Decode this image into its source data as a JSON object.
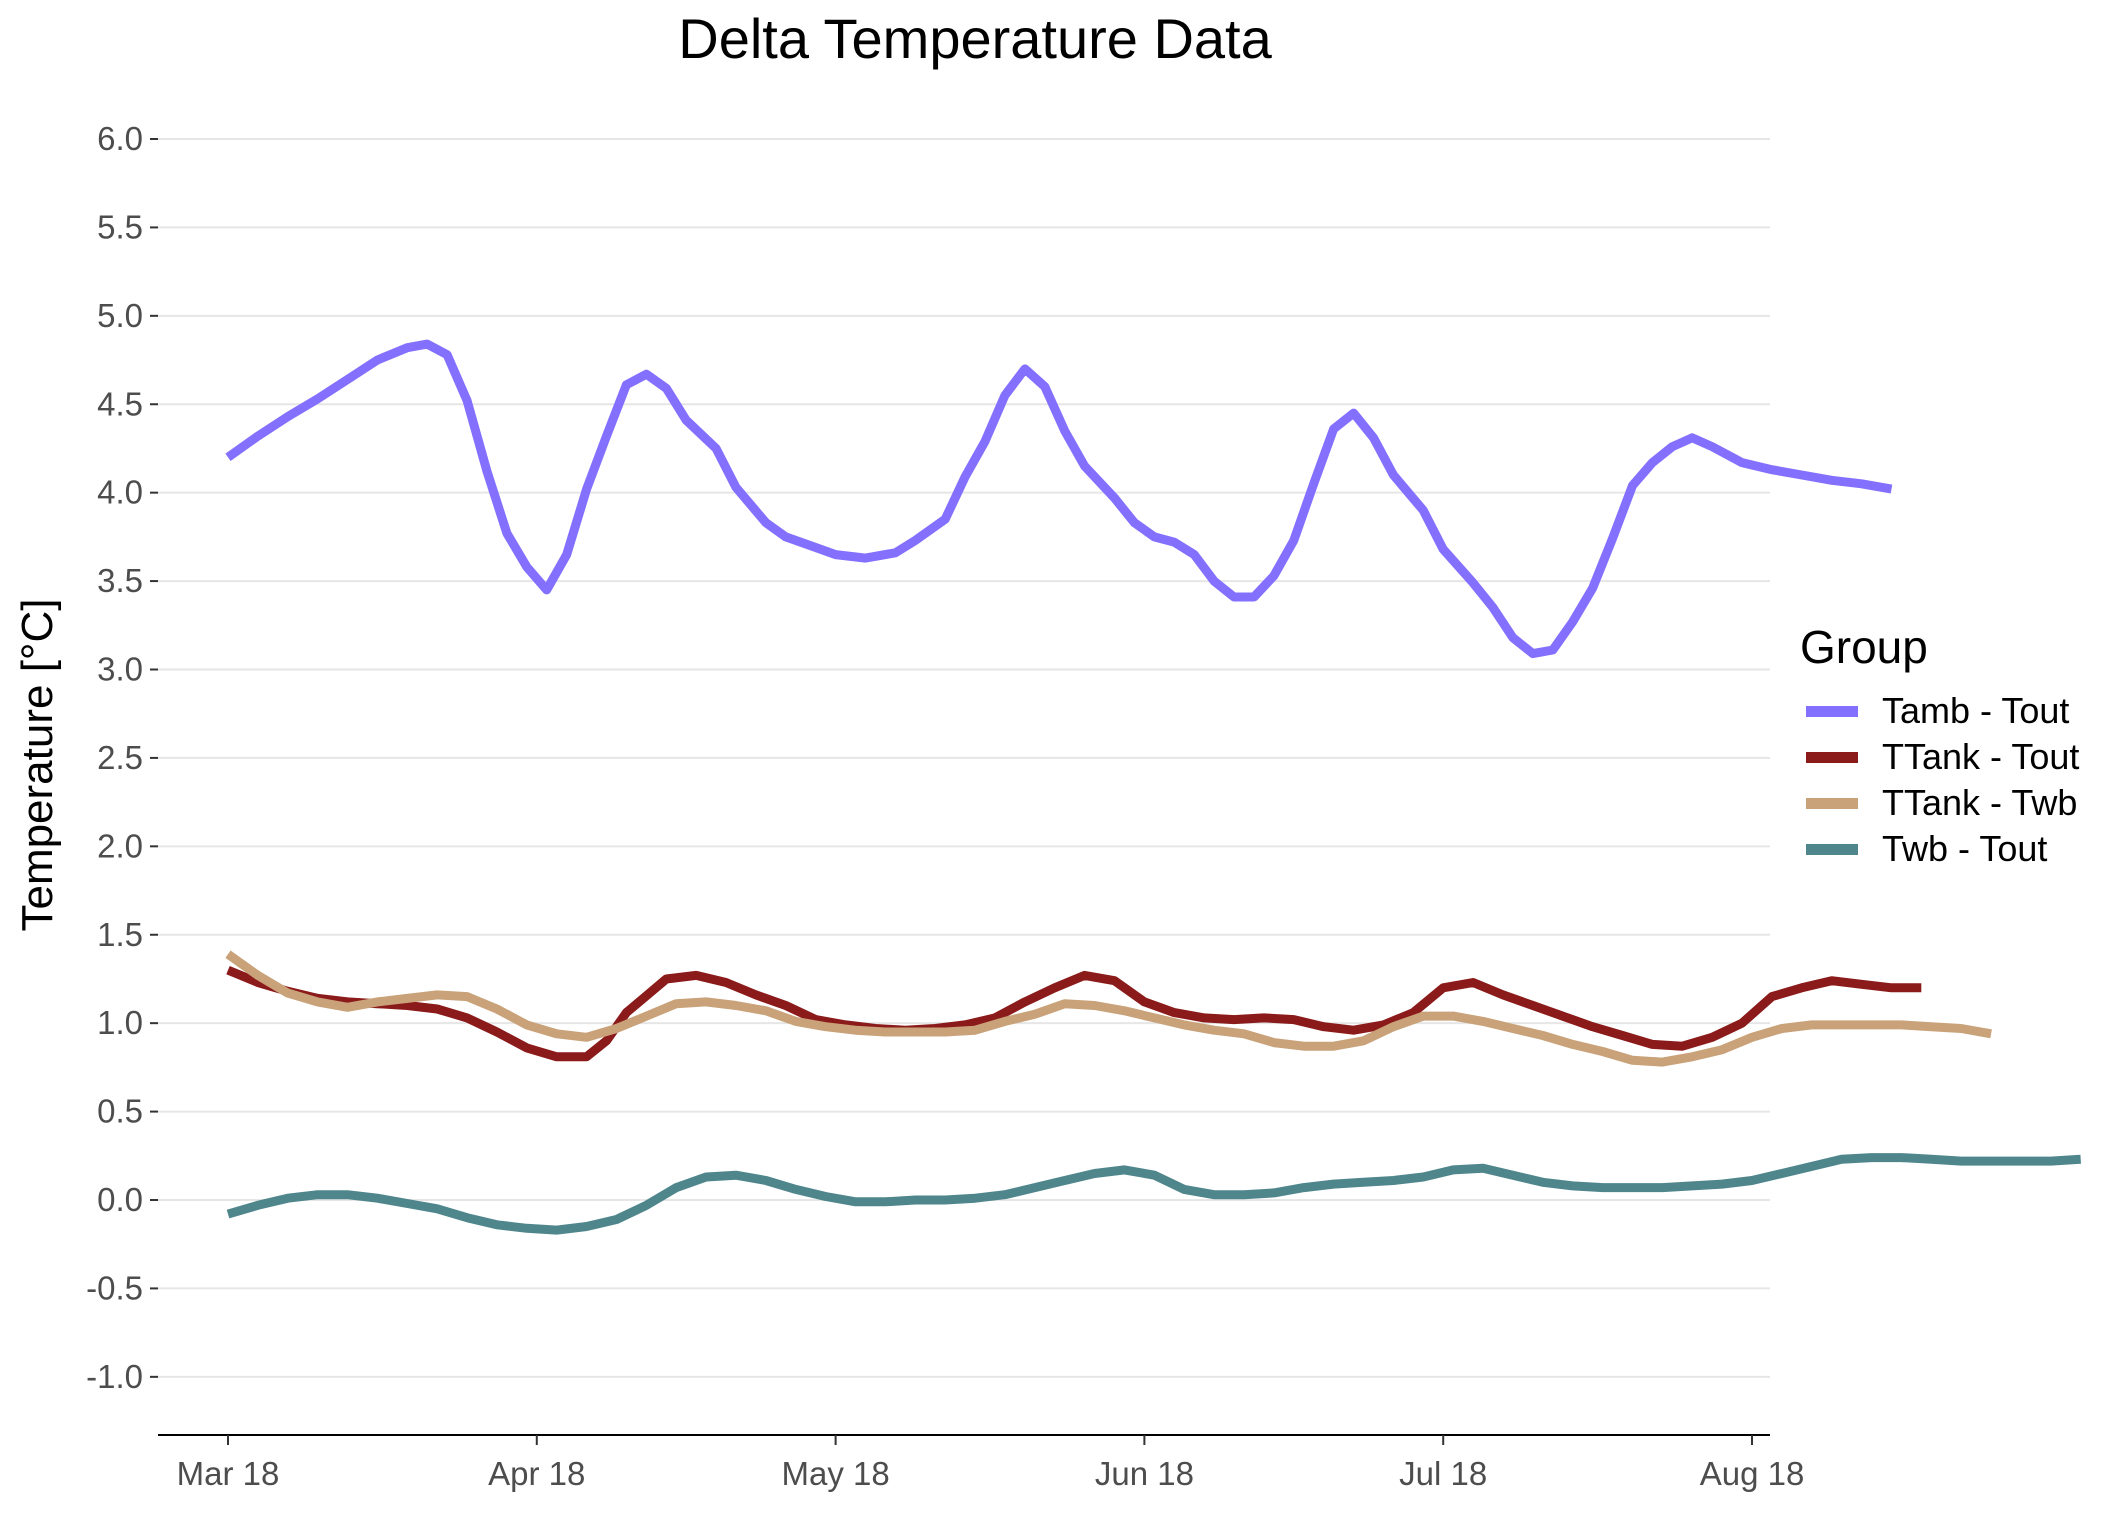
{
  "chart_data": {
    "type": "line",
    "title": "Delta Temperature Data",
    "xlabel": "",
    "ylabel": "Temperature [°C]",
    "ylim": [
      -1.3,
      6.2
    ],
    "yticks": [
      6.0,
      5.5,
      5.0,
      4.5,
      4.0,
      3.5,
      3.0,
      2.5,
      2.0,
      1.5,
      1.0,
      0.5,
      0.0,
      -0.5,
      -1.0
    ],
    "ytick_labels": [
      "6.0",
      "5.5",
      "5.0",
      "4.5",
      "4.0",
      "3.5",
      "3.0",
      "2.5",
      "2.0",
      "1.5",
      "1.0",
      "0.5",
      "0.0",
      "-0.5",
      "-1.0"
    ],
    "xticks": [
      "2018-03-01",
      "2018-04-01",
      "2018-05-01",
      "2018-06-01",
      "2018-07-01",
      "2018-08-01"
    ],
    "xtick_labels": [
      "Mar 18",
      "Apr 18",
      "May 18",
      "Jun 18",
      "Jul 18",
      "Aug 18"
    ],
    "grid": "horizontal",
    "legend": {
      "title": "Group",
      "placement": "right"
    },
    "series": [
      {
        "name": "Tamb - Tout",
        "color": "#8470FF",
        "points": [
          [
            "2018-03-01",
            4.2
          ],
          [
            "2018-03-04",
            4.32
          ],
          [
            "2018-03-07",
            4.43
          ],
          [
            "2018-03-10",
            4.53
          ],
          [
            "2018-03-13",
            4.64
          ],
          [
            "2018-03-16",
            4.75
          ],
          [
            "2018-03-19",
            4.82
          ],
          [
            "2018-03-21",
            4.84
          ],
          [
            "2018-03-23",
            4.78
          ],
          [
            "2018-03-25",
            4.52
          ],
          [
            "2018-03-27",
            4.12
          ],
          [
            "2018-03-29",
            3.77
          ],
          [
            "2018-03-31",
            3.58
          ],
          [
            "2018-04-02",
            3.45
          ],
          [
            "2018-04-04",
            3.65
          ],
          [
            "2018-04-06",
            4.02
          ],
          [
            "2018-04-08",
            4.32
          ],
          [
            "2018-04-10",
            4.61
          ],
          [
            "2018-04-12",
            4.67
          ],
          [
            "2018-04-14",
            4.59
          ],
          [
            "2018-04-16",
            4.41
          ],
          [
            "2018-04-19",
            4.25
          ],
          [
            "2018-04-21",
            4.03
          ],
          [
            "2018-04-24",
            3.83
          ],
          [
            "2018-04-26",
            3.75
          ],
          [
            "2018-04-29",
            3.69
          ],
          [
            "2018-05-01",
            3.65
          ],
          [
            "2018-05-04",
            3.63
          ],
          [
            "2018-05-07",
            3.66
          ],
          [
            "2018-05-09",
            3.73
          ],
          [
            "2018-05-12",
            3.85
          ],
          [
            "2018-05-14",
            4.09
          ],
          [
            "2018-05-16",
            4.29
          ],
          [
            "2018-05-18",
            4.55
          ],
          [
            "2018-05-20",
            4.7
          ],
          [
            "2018-05-22",
            4.6
          ],
          [
            "2018-05-24",
            4.35
          ],
          [
            "2018-05-26",
            4.15
          ],
          [
            "2018-05-29",
            3.97
          ],
          [
            "2018-05-31",
            3.83
          ],
          [
            "2018-06-02",
            3.75
          ],
          [
            "2018-06-04",
            3.72
          ],
          [
            "2018-06-06",
            3.65
          ],
          [
            "2018-06-08",
            3.5
          ],
          [
            "2018-06-10",
            3.41
          ],
          [
            "2018-06-12",
            3.41
          ],
          [
            "2018-06-14",
            3.53
          ],
          [
            "2018-06-16",
            3.73
          ],
          [
            "2018-06-18",
            4.05
          ],
          [
            "2018-06-20",
            4.36
          ],
          [
            "2018-06-22",
            4.45
          ],
          [
            "2018-06-24",
            4.31
          ],
          [
            "2018-06-26",
            4.1
          ],
          [
            "2018-06-29",
            3.9
          ],
          [
            "2018-07-01",
            3.68
          ],
          [
            "2018-07-04",
            3.49
          ],
          [
            "2018-07-06",
            3.35
          ],
          [
            "2018-07-08",
            3.18
          ],
          [
            "2018-07-10",
            3.09
          ],
          [
            "2018-07-12",
            3.11
          ],
          [
            "2018-07-14",
            3.27
          ],
          [
            "2018-07-16",
            3.46
          ],
          [
            "2018-07-18",
            3.74
          ],
          [
            "2018-07-20",
            4.04
          ],
          [
            "2018-07-22",
            4.17
          ],
          [
            "2018-07-24",
            4.26
          ],
          [
            "2018-07-26",
            4.31
          ],
          [
            "2018-07-28",
            4.26
          ],
          [
            "2018-07-31",
            4.17
          ],
          [
            "2018-08-03",
            4.13
          ],
          [
            "2018-08-06",
            4.1
          ],
          [
            "2018-08-09",
            4.07
          ],
          [
            "2018-08-12",
            4.05
          ],
          [
            "2018-08-15",
            4.02
          ]
        ]
      },
      {
        "name": "TTank - Tout",
        "color": "#8B1A1A",
        "points": [
          [
            "2018-03-01",
            1.3
          ],
          [
            "2018-03-04",
            1.23
          ],
          [
            "2018-03-07",
            1.18
          ],
          [
            "2018-03-10",
            1.14
          ],
          [
            "2018-03-13",
            1.12
          ],
          [
            "2018-03-16",
            1.11
          ],
          [
            "2018-03-19",
            1.1
          ],
          [
            "2018-03-22",
            1.08
          ],
          [
            "2018-03-25",
            1.03
          ],
          [
            "2018-03-28",
            0.95
          ],
          [
            "2018-03-31",
            0.86
          ],
          [
            "2018-04-03",
            0.81
          ],
          [
            "2018-04-06",
            0.81
          ],
          [
            "2018-04-08",
            0.9
          ],
          [
            "2018-04-10",
            1.06
          ],
          [
            "2018-04-14",
            1.25
          ],
          [
            "2018-04-17",
            1.27
          ],
          [
            "2018-04-20",
            1.23
          ],
          [
            "2018-04-23",
            1.16
          ],
          [
            "2018-04-26",
            1.1
          ],
          [
            "2018-04-29",
            1.02
          ],
          [
            "2018-05-02",
            0.99
          ],
          [
            "2018-05-05",
            0.97
          ],
          [
            "2018-05-08",
            0.96
          ],
          [
            "2018-05-11",
            0.97
          ],
          [
            "2018-05-14",
            0.99
          ],
          [
            "2018-05-17",
            1.03
          ],
          [
            "2018-05-20",
            1.12
          ],
          [
            "2018-05-23",
            1.2
          ],
          [
            "2018-05-26",
            1.27
          ],
          [
            "2018-05-29",
            1.24
          ],
          [
            "2018-06-01",
            1.12
          ],
          [
            "2018-06-04",
            1.06
          ],
          [
            "2018-06-07",
            1.03
          ],
          [
            "2018-06-10",
            1.02
          ],
          [
            "2018-06-13",
            1.03
          ],
          [
            "2018-06-16",
            1.02
          ],
          [
            "2018-06-19",
            0.98
          ],
          [
            "2018-06-22",
            0.96
          ],
          [
            "2018-06-25",
            0.99
          ],
          [
            "2018-06-28",
            1.06
          ],
          [
            "2018-07-01",
            1.2
          ],
          [
            "2018-07-04",
            1.23
          ],
          [
            "2018-07-07",
            1.16
          ],
          [
            "2018-07-10",
            1.1
          ],
          [
            "2018-07-13",
            1.04
          ],
          [
            "2018-07-16",
            0.98
          ],
          [
            "2018-07-19",
            0.93
          ],
          [
            "2018-07-22",
            0.88
          ],
          [
            "2018-07-25",
            0.87
          ],
          [
            "2018-07-28",
            0.92
          ],
          [
            "2018-07-31",
            1.0
          ],
          [
            "2018-08-03",
            1.15
          ],
          [
            "2018-08-06",
            1.2
          ],
          [
            "2018-08-09",
            1.24
          ],
          [
            "2018-08-12",
            1.22
          ],
          [
            "2018-08-15",
            1.2
          ],
          [
            "2018-08-18",
            1.2
          ]
        ]
      },
      {
        "name": "TTank - Twb",
        "color": "#C9A27A",
        "points": [
          [
            "2018-03-01",
            1.39
          ],
          [
            "2018-03-04",
            1.27
          ],
          [
            "2018-03-07",
            1.17
          ],
          [
            "2018-03-10",
            1.12
          ],
          [
            "2018-03-13",
            1.09
          ],
          [
            "2018-03-16",
            1.12
          ],
          [
            "2018-03-19",
            1.14
          ],
          [
            "2018-03-22",
            1.16
          ],
          [
            "2018-03-25",
            1.15
          ],
          [
            "2018-03-28",
            1.08
          ],
          [
            "2018-03-31",
            0.99
          ],
          [
            "2018-04-03",
            0.94
          ],
          [
            "2018-04-06",
            0.92
          ],
          [
            "2018-04-09",
            0.97
          ],
          [
            "2018-04-12",
            1.04
          ],
          [
            "2018-04-15",
            1.11
          ],
          [
            "2018-04-18",
            1.12
          ],
          [
            "2018-04-21",
            1.1
          ],
          [
            "2018-04-24",
            1.07
          ],
          [
            "2018-04-27",
            1.01
          ],
          [
            "2018-04-30",
            0.98
          ],
          [
            "2018-05-03",
            0.96
          ],
          [
            "2018-05-06",
            0.95
          ],
          [
            "2018-05-09",
            0.95
          ],
          [
            "2018-05-12",
            0.95
          ],
          [
            "2018-05-15",
            0.96
          ],
          [
            "2018-05-18",
            1.01
          ],
          [
            "2018-05-21",
            1.05
          ],
          [
            "2018-05-24",
            1.11
          ],
          [
            "2018-05-27",
            1.1
          ],
          [
            "2018-05-30",
            1.07
          ],
          [
            "2018-06-02",
            1.03
          ],
          [
            "2018-06-05",
            0.99
          ],
          [
            "2018-06-08",
            0.96
          ],
          [
            "2018-06-11",
            0.94
          ],
          [
            "2018-06-14",
            0.89
          ],
          [
            "2018-06-17",
            0.87
          ],
          [
            "2018-06-20",
            0.87
          ],
          [
            "2018-06-23",
            0.9
          ],
          [
            "2018-06-26",
            0.98
          ],
          [
            "2018-06-29",
            1.04
          ],
          [
            "2018-07-02",
            1.04
          ],
          [
            "2018-07-05",
            1.01
          ],
          [
            "2018-07-08",
            0.97
          ],
          [
            "2018-07-11",
            0.93
          ],
          [
            "2018-07-14",
            0.88
          ],
          [
            "2018-07-17",
            0.84
          ],
          [
            "2018-07-20",
            0.79
          ],
          [
            "2018-07-23",
            0.78
          ],
          [
            "2018-07-26",
            0.81
          ],
          [
            "2018-07-29",
            0.85
          ],
          [
            "2018-08-01",
            0.92
          ],
          [
            "2018-08-04",
            0.97
          ],
          [
            "2018-08-07",
            0.99
          ],
          [
            "2018-08-10",
            0.99
          ],
          [
            "2018-08-13",
            0.99
          ],
          [
            "2018-08-16",
            0.99
          ],
          [
            "2018-08-19",
            0.98
          ],
          [
            "2018-08-22",
            0.97
          ],
          [
            "2018-08-25",
            0.94
          ]
        ]
      },
      {
        "name": "Twb - Tout",
        "color": "#4F868C",
        "points": [
          [
            "2018-03-01",
            -0.08
          ],
          [
            "2018-03-04",
            -0.03
          ],
          [
            "2018-03-07",
            0.01
          ],
          [
            "2018-03-10",
            0.03
          ],
          [
            "2018-03-13",
            0.03
          ],
          [
            "2018-03-16",
            0.01
          ],
          [
            "2018-03-19",
            -0.02
          ],
          [
            "2018-03-22",
            -0.05
          ],
          [
            "2018-03-25",
            -0.1
          ],
          [
            "2018-03-28",
            -0.14
          ],
          [
            "2018-03-31",
            -0.16
          ],
          [
            "2018-04-03",
            -0.17
          ],
          [
            "2018-04-06",
            -0.15
          ],
          [
            "2018-04-09",
            -0.11
          ],
          [
            "2018-04-12",
            -0.03
          ],
          [
            "2018-04-15",
            0.07
          ],
          [
            "2018-04-18",
            0.13
          ],
          [
            "2018-04-21",
            0.14
          ],
          [
            "2018-04-24",
            0.11
          ],
          [
            "2018-04-27",
            0.06
          ],
          [
            "2018-04-30",
            0.02
          ],
          [
            "2018-05-03",
            -0.01
          ],
          [
            "2018-05-06",
            -0.01
          ],
          [
            "2018-05-09",
            0.0
          ],
          [
            "2018-05-12",
            0.0
          ],
          [
            "2018-05-15",
            0.01
          ],
          [
            "2018-05-18",
            0.03
          ],
          [
            "2018-05-21",
            0.07
          ],
          [
            "2018-05-24",
            0.11
          ],
          [
            "2018-05-27",
            0.15
          ],
          [
            "2018-05-30",
            0.17
          ],
          [
            "2018-06-02",
            0.14
          ],
          [
            "2018-06-05",
            0.06
          ],
          [
            "2018-06-08",
            0.03
          ],
          [
            "2018-06-11",
            0.03
          ],
          [
            "2018-06-14",
            0.04
          ],
          [
            "2018-06-17",
            0.07
          ],
          [
            "2018-06-20",
            0.09
          ],
          [
            "2018-06-23",
            0.1
          ],
          [
            "2018-06-26",
            0.11
          ],
          [
            "2018-06-29",
            0.13
          ],
          [
            "2018-07-02",
            0.17
          ],
          [
            "2018-07-05",
            0.18
          ],
          [
            "2018-07-08",
            0.14
          ],
          [
            "2018-07-11",
            0.1
          ],
          [
            "2018-07-14",
            0.08
          ],
          [
            "2018-07-17",
            0.07
          ],
          [
            "2018-07-20",
            0.07
          ],
          [
            "2018-07-23",
            0.07
          ],
          [
            "2018-07-26",
            0.08
          ],
          [
            "2018-07-29",
            0.09
          ],
          [
            "2018-08-01",
            0.11
          ],
          [
            "2018-08-04",
            0.15
          ],
          [
            "2018-08-07",
            0.19
          ],
          [
            "2018-08-10",
            0.23
          ],
          [
            "2018-08-13",
            0.24
          ],
          [
            "2018-08-16",
            0.24
          ],
          [
            "2018-08-19",
            0.23
          ],
          [
            "2018-08-22",
            0.22
          ],
          [
            "2018-08-25",
            0.22
          ],
          [
            "2018-08-28",
            0.22
          ],
          [
            "2018-08-31",
            0.22
          ],
          [
            "2018-09-03",
            0.23
          ]
        ]
      }
    ]
  }
}
